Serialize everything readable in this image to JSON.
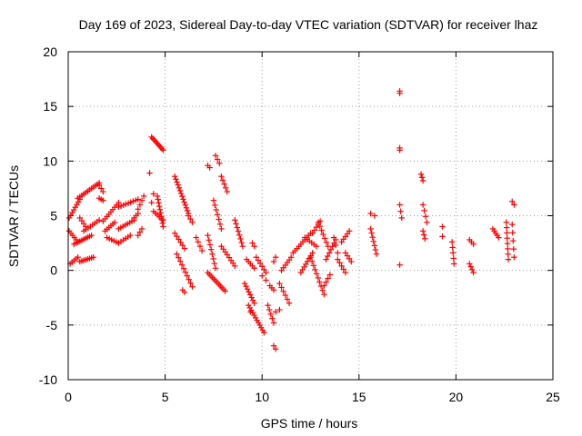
{
  "chart_data": {
    "type": "scatter",
    "title": "Day 169 of 2023, Sidereal Day-to-day VTEC variation (SDTVAR) for receiver lhaz",
    "xlabel": "GPS time / hours",
    "ylabel": "SDTVAR / TECUs",
    "xlim": [
      0,
      25
    ],
    "ylim": [
      -10,
      20
    ],
    "xticks": [
      0,
      5,
      10,
      15,
      20,
      25
    ],
    "yticks": [
      -10,
      -5,
      0,
      5,
      10,
      15,
      20
    ],
    "xtick_labels": [
      "0",
      "5",
      "10",
      "15",
      "20",
      "25"
    ],
    "ytick_labels": [
      "-10",
      "-5",
      "0",
      "5",
      "10",
      "15",
      "20"
    ],
    "grid": true,
    "marker": "+",
    "color": "#ff0000",
    "segments": [
      {
        "x0": 0.05,
        "y0": 4.8,
        "x1": 0.6,
        "y1": 6.5,
        "n": 8
      },
      {
        "x0": 0.05,
        "y0": 3.6,
        "x1": 0.5,
        "y1": 2.6,
        "n": 6
      },
      {
        "x0": 0.1,
        "y0": 0.6,
        "x1": 0.5,
        "y1": 1.2,
        "n": 5
      },
      {
        "x0": 0.3,
        "y0": 2.4,
        "x1": 1.2,
        "y1": 3.2,
        "n": 10
      },
      {
        "x0": 0.5,
        "y0": 6.6,
        "x1": 1.6,
        "y1": 8.0,
        "n": 12
      },
      {
        "x0": 0.6,
        "y0": 4.8,
        "x1": 0.9,
        "y1": 4.0,
        "n": 4
      },
      {
        "x0": 0.6,
        "y0": 0.8,
        "x1": 1.3,
        "y1": 1.2,
        "n": 8
      },
      {
        "x0": 0.8,
        "y0": 3.6,
        "x1": 1.6,
        "y1": 4.6,
        "n": 8
      },
      {
        "x0": 1.6,
        "y0": 7.8,
        "x1": 1.8,
        "y1": 7.2,
        "n": 3
      },
      {
        "x0": 1.6,
        "y0": 6.6,
        "x1": 1.8,
        "y1": 6.4,
        "n": 3
      },
      {
        "x0": 1.8,
        "y0": 4.5,
        "x1": 2.6,
        "y1": 6.2,
        "n": 9
      },
      {
        "x0": 1.9,
        "y0": 3.6,
        "x1": 2.4,
        "y1": 4.4,
        "n": 6
      },
      {
        "x0": 2.0,
        "y0": 3.0,
        "x1": 2.6,
        "y1": 2.5,
        "n": 6
      },
      {
        "x0": 2.6,
        "y0": 3.8,
        "x1": 3.4,
        "y1": 4.6,
        "n": 8
      },
      {
        "x0": 2.6,
        "y0": 5.8,
        "x1": 3.6,
        "y1": 6.5,
        "n": 9
      },
      {
        "x0": 2.6,
        "y0": 2.5,
        "x1": 3.2,
        "y1": 3.2,
        "n": 6
      },
      {
        "x0": 3.4,
        "y0": 4.8,
        "x1": 3.6,
        "y1": 5.2,
        "n": 3
      },
      {
        "x0": 3.6,
        "y0": 5.6,
        "x1": 3.9,
        "y1": 6.8,
        "n": 4
      },
      {
        "x0": 3.6,
        "y0": 3.2,
        "x1": 3.8,
        "y1": 3.8,
        "n": 3
      },
      {
        "x0": 4.3,
        "y0": 6.2,
        "x1": 4.4,
        "y1": 7.0,
        "n": 2
      },
      {
        "x0": 4.3,
        "y0": 12.2,
        "x1": 4.9,
        "y1": 11.0,
        "n": 10
      },
      {
        "x0": 4.2,
        "y0": 8.9,
        "x1": 4.2,
        "y1": 8.9,
        "n": 1
      },
      {
        "x0": 4.6,
        "y0": 6.8,
        "x1": 4.9,
        "y1": 4.0,
        "n": 10
      },
      {
        "x0": 4.4,
        "y0": 5.4,
        "x1": 4.9,
        "y1": 4.6,
        "n": 6
      },
      {
        "x0": 5.5,
        "y0": 8.6,
        "x1": 6.2,
        "y1": 5.2,
        "n": 14
      },
      {
        "x0": 5.5,
        "y0": 3.4,
        "x1": 6.0,
        "y1": 2.0,
        "n": 6
      },
      {
        "x0": 5.6,
        "y0": 1.5,
        "x1": 6.4,
        "y1": -1.5,
        "n": 10
      },
      {
        "x0": 5.9,
        "y0": -1.8,
        "x1": 6.0,
        "y1": -2.0,
        "n": 2
      },
      {
        "x0": 6.2,
        "y0": 5.0,
        "x1": 6.4,
        "y1": 4.4,
        "n": 3
      },
      {
        "x0": 6.6,
        "y0": 3.0,
        "x1": 6.9,
        "y1": 1.8,
        "n": 4
      },
      {
        "x0": 7.2,
        "y0": 9.6,
        "x1": 7.3,
        "y1": 9.4,
        "n": 2
      },
      {
        "x0": 7.2,
        "y0": 3.2,
        "x1": 7.6,
        "y1": 0.2,
        "n": 8
      },
      {
        "x0": 7.2,
        "y0": -0.2,
        "x1": 8.1,
        "y1": -1.9,
        "n": 12
      },
      {
        "x0": 7.5,
        "y0": 6.4,
        "x1": 7.9,
        "y1": 3.8,
        "n": 7
      },
      {
        "x0": 7.6,
        "y0": 10.5,
        "x1": 7.8,
        "y1": 9.8,
        "n": 3
      },
      {
        "x0": 7.9,
        "y0": 8.6,
        "x1": 8.2,
        "y1": 7.2,
        "n": 5
      },
      {
        "x0": 7.9,
        "y0": 2.2,
        "x1": 8.6,
        "y1": 0.4,
        "n": 8
      },
      {
        "x0": 8.6,
        "y0": 4.6,
        "x1": 9.0,
        "y1": 2.2,
        "n": 8
      },
      {
        "x0": 9.2,
        "y0": 1.0,
        "x1": 9.6,
        "y1": 0.2,
        "n": 5
      },
      {
        "x0": 9.1,
        "y0": -1.2,
        "x1": 9.6,
        "y1": -3.0,
        "n": 8
      },
      {
        "x0": 9.3,
        "y0": -3.2,
        "x1": 10.1,
        "y1": -5.7,
        "n": 12
      },
      {
        "x0": 9.4,
        "y0": -3.8,
        "x1": 9.5,
        "y1": -3.8,
        "n": 1
      },
      {
        "x0": 9.5,
        "y0": 2.5,
        "x1": 9.6,
        "y1": 2.2,
        "n": 2
      },
      {
        "x0": 9.7,
        "y0": 1.2,
        "x1": 10.2,
        "y1": -0.2,
        "n": 6
      },
      {
        "x0": 10.0,
        "y0": -0.5,
        "x1": 10.2,
        "y1": -0.9,
        "n": 2
      },
      {
        "x0": 10.3,
        "y0": -3.2,
        "x1": 10.6,
        "y1": -4.8,
        "n": 5
      },
      {
        "x0": 10.4,
        "y0": -1.4,
        "x1": 10.6,
        "y1": -1.8,
        "n": 3
      },
      {
        "x0": 10.6,
        "y0": 0.8,
        "x1": 10.7,
        "y1": 1.2,
        "n": 2
      },
      {
        "x0": 10.6,
        "y0": -6.9,
        "x1": 10.7,
        "y1": -7.2,
        "n": 2
      },
      {
        "x0": 10.7,
        "y0": -3.8,
        "x1": 10.9,
        "y1": -3.6,
        "n": 2
      },
      {
        "x0": 10.9,
        "y0": -1.2,
        "x1": 11.4,
        "y1": -3.0,
        "n": 6
      },
      {
        "x0": 11.0,
        "y0": 0.0,
        "x1": 11.5,
        "y1": 1.2,
        "n": 6
      },
      {
        "x0": 11.6,
        "y0": 1.6,
        "x1": 12.5,
        "y1": 3.4,
        "n": 10
      },
      {
        "x0": 12.0,
        "y0": -0.2,
        "x1": 12.6,
        "y1": 1.6,
        "n": 8
      },
      {
        "x0": 12.2,
        "y0": 3.0,
        "x1": 12.8,
        "y1": 2.2,
        "n": 6
      },
      {
        "x0": 12.5,
        "y0": 1.2,
        "x1": 13.2,
        "y1": -2.2,
        "n": 10
      },
      {
        "x0": 12.6,
        "y0": 3.4,
        "x1": 13.0,
        "y1": 4.5,
        "n": 5
      },
      {
        "x0": 12.9,
        "y0": 4.4,
        "x1": 13.4,
        "y1": 2.2,
        "n": 7
      },
      {
        "x0": 13.2,
        "y0": -1.4,
        "x1": 13.5,
        "y1": -0.4,
        "n": 4
      },
      {
        "x0": 13.3,
        "y0": 1.0,
        "x1": 13.8,
        "y1": 2.8,
        "n": 7
      },
      {
        "x0": 13.7,
        "y0": 3.0,
        "x1": 13.9,
        "y1": 1.6,
        "n": 3
      },
      {
        "x0": 13.9,
        "y0": 1.0,
        "x1": 14.3,
        "y1": -0.2,
        "n": 5
      },
      {
        "x0": 14.1,
        "y0": 2.6,
        "x1": 14.5,
        "y1": 3.6,
        "n": 5
      },
      {
        "x0": 14.3,
        "y0": 1.6,
        "x1": 14.6,
        "y1": 0.8,
        "n": 4
      },
      {
        "x0": 15.6,
        "y0": 5.2,
        "x1": 15.8,
        "y1": 5.0,
        "n": 2
      },
      {
        "x0": 15.6,
        "y0": 3.8,
        "x1": 15.9,
        "y1": 1.5,
        "n": 7
      },
      {
        "x0": 17.1,
        "y0": 16.4,
        "x1": 17.1,
        "y1": 16.2,
        "n": 2
      },
      {
        "x0": 17.1,
        "y0": 11.2,
        "x1": 17.1,
        "y1": 11.0,
        "n": 2
      },
      {
        "x0": 17.1,
        "y0": 6.0,
        "x1": 17.2,
        "y1": 4.8,
        "n": 3
      },
      {
        "x0": 17.1,
        "y0": 0.5,
        "x1": 17.1,
        "y1": 0.5,
        "n": 1
      },
      {
        "x0": 18.2,
        "y0": 8.8,
        "x1": 18.3,
        "y1": 8.2,
        "n": 3
      },
      {
        "x0": 18.3,
        "y0": 6.0,
        "x1": 18.5,
        "y1": 4.4,
        "n": 4
      },
      {
        "x0": 18.3,
        "y0": 3.6,
        "x1": 18.4,
        "y1": 2.9,
        "n": 3
      },
      {
        "x0": 19.3,
        "y0": 4.0,
        "x1": 19.3,
        "y1": 3.1,
        "n": 2
      },
      {
        "x0": 19.8,
        "y0": 2.6,
        "x1": 19.9,
        "y1": 0.6,
        "n": 5
      },
      {
        "x0": 20.7,
        "y0": 2.8,
        "x1": 20.9,
        "y1": 2.4,
        "n": 3
      },
      {
        "x0": 20.7,
        "y0": 0.6,
        "x1": 20.9,
        "y1": -0.2,
        "n": 4
      },
      {
        "x0": 21.9,
        "y0": 3.8,
        "x1": 22.2,
        "y1": 3.0,
        "n": 5
      },
      {
        "x0": 22.6,
        "y0": 4.4,
        "x1": 22.7,
        "y1": 1.0,
        "n": 8
      },
      {
        "x0": 22.9,
        "y0": 6.3,
        "x1": 23.0,
        "y1": 6.0,
        "n": 2
      },
      {
        "x0": 22.9,
        "y0": 4.2,
        "x1": 23.0,
        "y1": 1.2,
        "n": 5
      }
    ]
  }
}
